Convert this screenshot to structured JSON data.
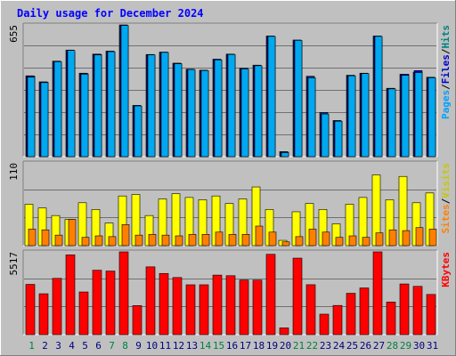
{
  "chart_data": [
    {
      "type": "bar",
      "title": "Daily usage for December 2024",
      "panel": "hits-files-pages",
      "categories": [
        "1",
        "2",
        "3",
        "4",
        "5",
        "6",
        "7",
        "8",
        "9",
        "10",
        "11",
        "12",
        "13",
        "14",
        "15",
        "16",
        "17",
        "18",
        "19",
        "20",
        "21",
        "22",
        "23",
        "24",
        "25",
        "26",
        "27",
        "28",
        "29",
        "30",
        "31"
      ],
      "ymax_label": "655",
      "ylim": [
        0,
        655
      ],
      "legend": [
        {
          "label": "Pages",
          "color": "#00a0ff"
        },
        {
          "label": "Files",
          "color": "#0000d0"
        },
        {
          "label": "Hits",
          "color": "#008080"
        }
      ],
      "series": [
        {
          "name": "Hits",
          "values": [
            402,
            372,
            475,
            530,
            415,
            510,
            525,
            655,
            255,
            508,
            520,
            465,
            435,
            430,
            485,
            510,
            440,
            455,
            600,
            25,
            580,
            400,
            220,
            180,
            405,
            415,
            600,
            340,
            410,
            420,
            395
          ],
          "color": "#1c2d84"
        },
        {
          "name": "Files",
          "values": [
            400,
            370,
            470,
            520,
            412,
            508,
            520,
            650,
            250,
            505,
            518,
            462,
            430,
            427,
            480,
            506,
            434,
            450,
            595,
            22,
            575,
            392,
            210,
            175,
            400,
            412,
            595,
            336,
            410,
            428,
            390
          ],
          "color": "#0000c8"
        },
        {
          "name": "Pages",
          "values": [
            395,
            368,
            472,
            528,
            410,
            506,
            522,
            652,
            252,
            506,
            518,
            462,
            433,
            428,
            481,
            508,
            436,
            452,
            598,
            20,
            578,
            392,
            212,
            176,
            402,
            413,
            598,
            337,
            404,
            418,
            392
          ],
          "color": "#00a8f0"
        }
      ]
    },
    {
      "type": "bar",
      "panel": "visits-sites",
      "categories": [
        "1",
        "2",
        "3",
        "4",
        "5",
        "6",
        "7",
        "8",
        "9",
        "10",
        "11",
        "12",
        "13",
        "14",
        "15",
        "16",
        "17",
        "18",
        "19",
        "20",
        "21",
        "22",
        "23",
        "24",
        "25",
        "26",
        "27",
        "28",
        "29",
        "30",
        "31"
      ],
      "ymax_label": "110",
      "ylim": [
        0,
        110
      ],
      "legend": [
        {
          "label": "Sites",
          "color": "#ff8000"
        },
        {
          "label": "Visits",
          "color": "#c8c800"
        }
      ],
      "series": [
        {
          "name": "Visits",
          "values": [
            55,
            50,
            40,
            35,
            57,
            48,
            30,
            66,
            68,
            40,
            62,
            69,
            64,
            61,
            66,
            56,
            62,
            78,
            48,
            7,
            45,
            56,
            48,
            29,
            55,
            64,
            94,
            61,
            92,
            57,
            70
          ],
          "color": "#ffff00"
        },
        {
          "name": "Sites",
          "values": [
            22,
            21,
            14,
            35,
            11,
            13,
            12,
            28,
            14,
            15,
            14,
            13,
            15,
            15,
            18,
            15,
            15,
            26,
            18,
            5,
            12,
            22,
            18,
            11,
            13,
            11,
            17,
            21,
            20,
            24,
            22
          ],
          "color": "#ff8000"
        }
      ]
    },
    {
      "type": "bar",
      "panel": "kbytes",
      "categories": [
        "1",
        "2",
        "3",
        "4",
        "5",
        "6",
        "7",
        "8",
        "9",
        "10",
        "11",
        "12",
        "13",
        "14",
        "15",
        "16",
        "17",
        "18",
        "19",
        "20",
        "21",
        "22",
        "23",
        "24",
        "25",
        "26",
        "27",
        "28",
        "29",
        "30",
        "31"
      ],
      "ymax_label": "5517",
      "ylim": [
        0,
        5517
      ],
      "legend": [
        {
          "label": "KBytes",
          "color": "#ff0000"
        }
      ],
      "series": [
        {
          "name": "KBytes",
          "values": [
            3350,
            2725,
            3751,
            5317,
            2845,
            4293,
            4238,
            5517,
            1938,
            4518,
            4078,
            3808,
            3323,
            3323,
            3969,
            3929,
            3639,
            3633,
            5355,
            450,
            5100,
            3328,
            1364,
            1946,
            2756,
            3113,
            5517,
            2173,
            3378,
            3218,
            2678
          ],
          "color": "#ff0000"
        }
      ]
    }
  ],
  "colors": {
    "background": "#c0c0c0",
    "grid": "#707070",
    "title": "#0000ff",
    "day_normal": "#000080",
    "day_weekend": "#008040"
  },
  "weekend_days": [
    "1",
    "7",
    "8",
    "14",
    "15",
    "21",
    "22",
    "28",
    "29"
  ]
}
